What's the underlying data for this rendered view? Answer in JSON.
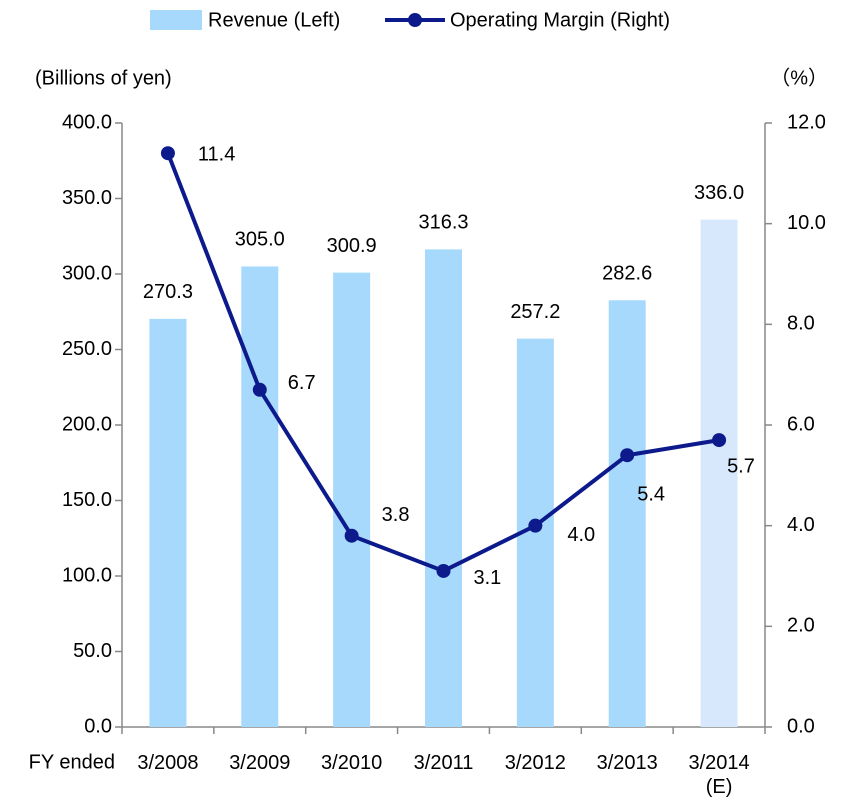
{
  "chart_data": {
    "type": "bar_line",
    "legend_position": "top",
    "y_axis_label": "(Billions of yen)",
    "y2_axis_label": "（%）",
    "x_axis_label": "FY ended",
    "categories": [
      "3/2008",
      "3/2009",
      "3/2010",
      "3/2011",
      "3/2012",
      "3/2013",
      "3/2014\n(E)"
    ],
    "series": [
      {
        "name": "Revenue (Left)",
        "type": "bar",
        "axis": "y",
        "color": "#a6d9fb",
        "colors": [
          "#a6d9fb",
          "#a6d9fb",
          "#a6d9fb",
          "#a6d9fb",
          "#a6d9fb",
          "#a6d9fb",
          "#d7e8fc"
        ],
        "values": [
          270.3,
          305.0,
          300.9,
          316.3,
          257.2,
          282.6,
          336.0
        ],
        "value_labels": [
          "270.3",
          "305.0",
          "300.9",
          "316.3",
          "257.2",
          "282.6",
          "336.0"
        ]
      },
      {
        "name": "Operating Margin (Right)",
        "type": "line",
        "axis": "y2",
        "color": "#0d1a8c",
        "values": [
          11.4,
          6.7,
          3.8,
          3.1,
          4.0,
          5.4,
          5.7
        ],
        "value_labels": [
          "11.4",
          "6.7",
          "3.8",
          "3.1",
          "4.0",
          "5.4",
          "5.7"
        ]
      }
    ],
    "ylim": [
      0,
      400
    ],
    "yticks": [
      {
        "value": 0,
        "label": "0.0"
      },
      {
        "value": 50,
        "label": "50.0"
      },
      {
        "value": 100,
        "label": "100.0"
      },
      {
        "value": 150,
        "label": "150.0"
      },
      {
        "value": 200,
        "label": "200.0"
      },
      {
        "value": 250,
        "label": "250.0"
      },
      {
        "value": 300,
        "label": "300.0"
      },
      {
        "value": 350,
        "label": "350.0"
      },
      {
        "value": 400,
        "label": "400.0"
      }
    ],
    "y2lim": [
      0,
      12
    ],
    "y2ticks": [
      {
        "value": 0,
        "label": "0.0"
      },
      {
        "value": 2,
        "label": "2.0"
      },
      {
        "value": 4,
        "label": "4.0"
      },
      {
        "value": 6,
        "label": "6.0"
      },
      {
        "value": 8,
        "label": "8.0"
      },
      {
        "value": 10,
        "label": "10.0"
      },
      {
        "value": 12,
        "label": "12.0"
      }
    ]
  }
}
